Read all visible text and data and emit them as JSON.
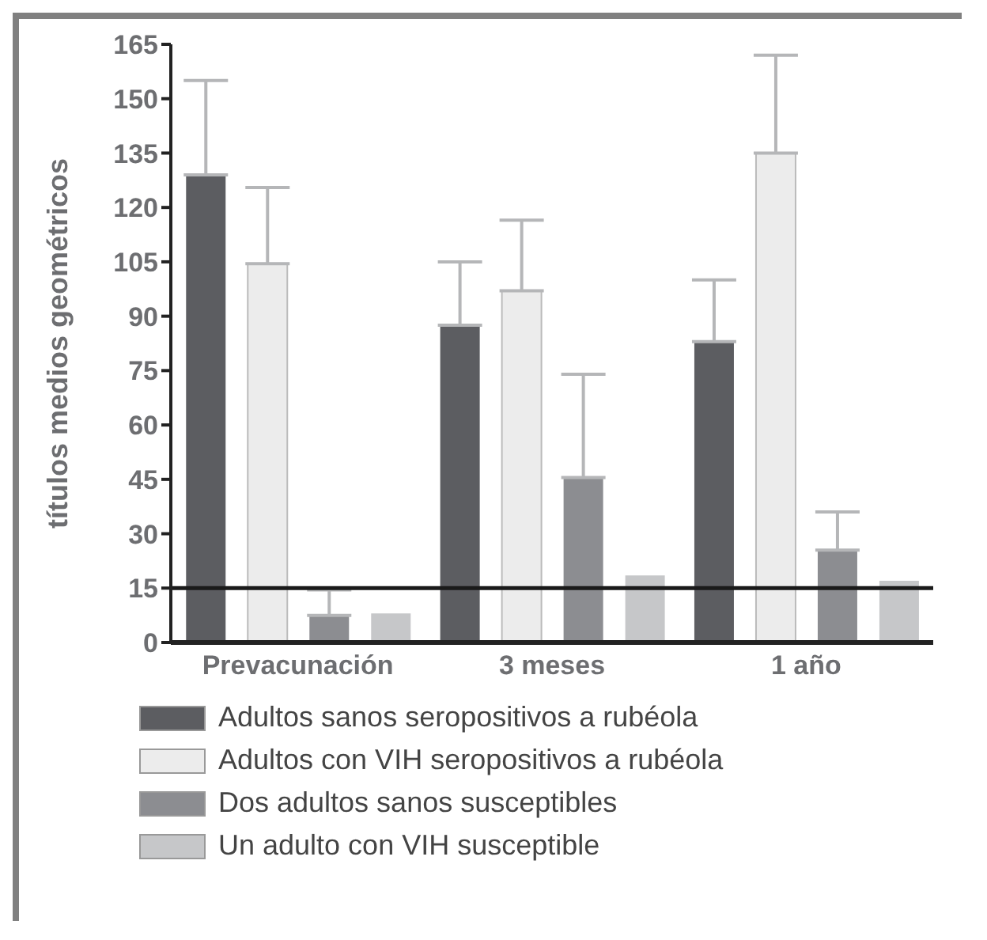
{
  "chart_data": {
    "type": "bar",
    "ylabel": "títulos medios geométricos",
    "categories": [
      "Prevacunación",
      "3 meses",
      "1 año"
    ],
    "series": [
      {
        "name": "Adultos sanos seropositivos a rubéola",
        "color": "#5c5d61",
        "values": [
          129,
          87.5,
          83
        ],
        "errors": [
          [
            129,
            155
          ],
          [
            87.5,
            105
          ],
          [
            83,
            100
          ]
        ]
      },
      {
        "name": "Adultos con VIH seropositivos a rubéola",
        "color": "#ececec",
        "values": [
          104.5,
          97,
          135
        ],
        "errors": [
          [
            104.5,
            125.5
          ],
          [
            97,
            116.5
          ],
          [
            135,
            162
          ]
        ]
      },
      {
        "name": "Dos adultos sanos susceptibles",
        "color": "#8c8d91",
        "values": [
          7.5,
          45.5,
          25.5
        ],
        "errors": [
          [
            7.5,
            14.5
          ],
          [
            45.5,
            74
          ],
          [
            25.5,
            36
          ]
        ]
      },
      {
        "name": "Un adulto con VIH susceptible",
        "color": "#c6c7c9",
        "values": [
          8,
          18.5,
          17
        ],
        "errors": [
          null,
          null,
          null
        ]
      }
    ],
    "ylim": [
      0,
      165
    ],
    "yticks": [
      0,
      15,
      30,
      45,
      60,
      75,
      90,
      105,
      120,
      135,
      150,
      165
    ],
    "ref_lines": [
      {
        "axis": "y",
        "value": 15,
        "color": "#1a1a1a"
      }
    ],
    "grid": false,
    "legend": "bottom"
  }
}
